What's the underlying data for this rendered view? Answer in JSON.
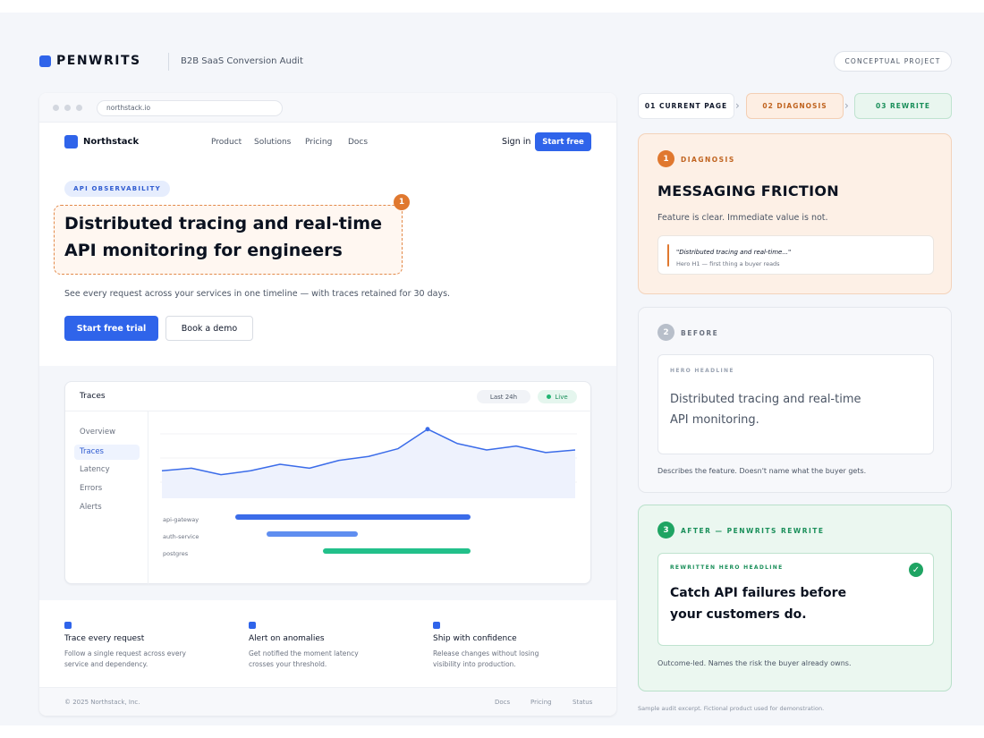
{
  "header": {
    "brand": "PENWRITS",
    "subtitle": "B2B SaaS Conversion Audit",
    "tag": "CONCEPTUAL PROJECT"
  },
  "browser": {
    "url": "northstack.io",
    "nav": {
      "brand": "Northstack",
      "links": [
        "Product",
        "Solutions",
        "Pricing",
        "Docs"
      ],
      "signin": "Sign in",
      "cta": "Start free"
    },
    "hero": {
      "badge": "API OBSERVABILITY",
      "headline_line1": "Distributed tracing and real-time",
      "headline_line2": "API monitoring for engineers",
      "marker": "1",
      "subtext": "See every request across your services in one timeline — with traces retained for 30 days.",
      "primary_cta": "Start free trial",
      "secondary_cta": "Book a demo"
    },
    "dashboard": {
      "title": "Traces",
      "range": "Last 24h",
      "status": "Live",
      "sidebar": [
        "Overview",
        "Traces",
        "Latency",
        "Errors",
        "Alerts"
      ],
      "active_item": "Traces",
      "chart_values": [
        17,
        19,
        14,
        17,
        22,
        19,
        25,
        28,
        34,
        49,
        38,
        33,
        36,
        31,
        33
      ],
      "services": [
        {
          "name": "api-gateway",
          "start": 0.18,
          "end": 0.745,
          "color": "#3b6ce9"
        },
        {
          "name": "auth-service",
          "start": 0.255,
          "end": 0.475,
          "color": "#5f8ef0"
        },
        {
          "name": "postgres",
          "start": 0.39,
          "end": 0.745,
          "color": "#22c08a"
        }
      ]
    },
    "features": [
      {
        "title": "Trace every request",
        "desc_line1": "Follow a single request across every",
        "desc_line2": "service and dependency."
      },
      {
        "title": "Alert on anomalies",
        "desc_line1": "Get notified the moment latency",
        "desc_line2": "crosses your threshold."
      },
      {
        "title": "Ship with confidence",
        "desc_line1": "Release changes without losing",
        "desc_line2": "visibility into production."
      }
    ],
    "footer": {
      "copyright": "© 2025 Northstack, Inc.",
      "links": [
        "Docs",
        "Pricing",
        "Status"
      ]
    }
  },
  "steps": [
    "01 CURRENT PAGE",
    "02 DIAGNOSIS",
    "03 REWRITE"
  ],
  "diagnosis": {
    "num": "1",
    "eyebrow": "DIAGNOSIS",
    "title": "MESSAGING FRICTION",
    "subtitle": "Feature is clear. Immediate value is not.",
    "quote": "\"Distributed tracing and real-time...\"",
    "quote_caption": "Hero H1 — first thing a buyer reads"
  },
  "before": {
    "num": "2",
    "eyebrow": "BEFORE",
    "label": "HERO HEADLINE",
    "headline_line1": "Distributed tracing and real-time",
    "headline_line2": "API monitoring.",
    "note": "Describes the feature. Doesn't name what the buyer gets."
  },
  "after": {
    "num": "3",
    "eyebrow": "AFTER — PENWRITS REWRITE",
    "label": "REWRITTEN HERO HEADLINE",
    "headline_line1": "Catch API failures before",
    "headline_line2": "your customers do.",
    "note": "Outcome-led. Names the risk the buyer already owns."
  },
  "footnote": "Sample audit excerpt. Fictional product used for demonstration.",
  "colors": {
    "accent": "#2f64ea",
    "diagnosis": "#e0782f",
    "success": "#1fa463",
    "neutral": "#b8bfca"
  }
}
